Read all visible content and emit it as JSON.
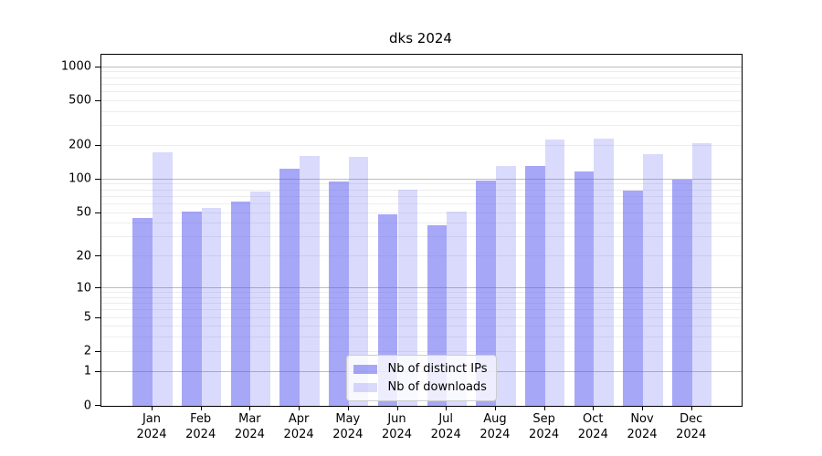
{
  "title": "dks 2024",
  "chart_data": {
    "type": "bar",
    "title": "dks 2024",
    "yscale": "log1p",
    "ylim": [
      0,
      1000
    ],
    "grid": "both",
    "legend_position": "lower center",
    "ytick_values": [
      1000,
      500,
      200,
      100,
      50,
      20,
      10,
      5,
      2,
      1,
      0
    ],
    "major_gridlines": [
      1,
      10,
      100,
      1000
    ],
    "minor_gridlines": [
      2,
      3,
      4,
      5,
      6,
      7,
      8,
      9,
      20,
      30,
      40,
      50,
      60,
      70,
      80,
      90,
      200,
      300,
      400,
      500,
      600,
      700,
      800,
      900
    ],
    "categories": [
      "Jan",
      "Feb",
      "Mar",
      "Apr",
      "May",
      "Jun",
      "Jul",
      "Aug",
      "Sep",
      "Oct",
      "Nov",
      "Dec"
    ],
    "year": "2024",
    "series": [
      {
        "name": "Nb of distinct IPs",
        "color": "rgba(88,88,240,0.53)",
        "solid_color": "#abaaf2",
        "values": [
          45,
          52,
          64,
          126,
          96,
          49,
          39,
          98,
          132,
          118,
          79,
          100
        ]
      },
      {
        "name": "Nb of downloads",
        "color": "rgba(88,88,240,0.22)",
        "solid_color": "#dadaf8",
        "values": [
          175,
          56,
          78,
          163,
          160,
          81,
          52,
          131,
          226,
          233,
          169,
          209
        ]
      }
    ]
  },
  "colors": {
    "background": "#ffffff",
    "spine": "#000000",
    "major_grid": "#bdbdbd",
    "minor_grid": "#ededed",
    "text": "#000000",
    "legend_border": "#cccccc"
  }
}
